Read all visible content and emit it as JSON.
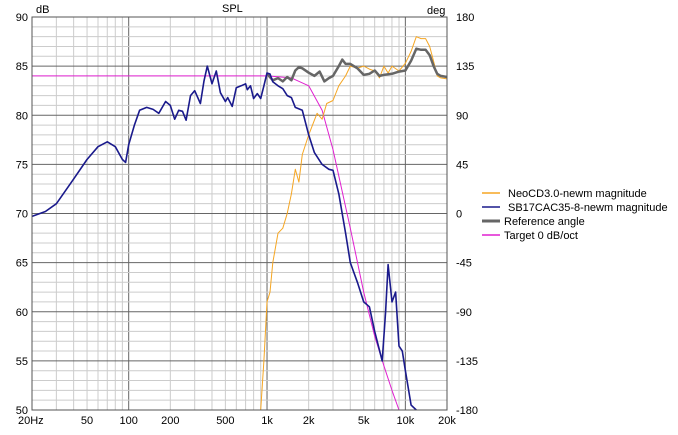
{
  "chart_data": {
    "type": "line",
    "title": "SPL",
    "ylabel": "dB",
    "y2label": "deg",
    "xscale": "log",
    "xlim": [
      20,
      20000
    ],
    "ylim": [
      50,
      90
    ],
    "y2lim": [
      -180,
      180
    ],
    "grid": true,
    "legend_position": "right",
    "x_ticks": [
      {
        "v": 20,
        "label": "20Hz"
      },
      {
        "v": 50,
        "label": "50"
      },
      {
        "v": 100,
        "label": "100"
      },
      {
        "v": 200,
        "label": "200"
      },
      {
        "v": 500,
        "label": "500"
      },
      {
        "v": 1000,
        "label": "1k"
      },
      {
        "v": 2000,
        "label": "2k"
      },
      {
        "v": 5000,
        "label": "5k"
      },
      {
        "v": 10000,
        "label": "10k"
      },
      {
        "v": 20000,
        "label": "20k"
      }
    ],
    "y_ticks": [
      "90",
      "85",
      "80",
      "75",
      "70",
      "65",
      "60",
      "55",
      "50"
    ],
    "y2_ticks": [
      "180",
      "135",
      "90",
      "45",
      "0",
      "-45",
      "-90",
      "-135",
      "-180"
    ],
    "series": [
      {
        "name": "NeoCD3.0-newm magnitude",
        "color": "#f5a623",
        "axis": "left",
        "width": 1,
        "points": [
          [
            900,
            50
          ],
          [
            950,
            55
          ],
          [
            1000,
            61
          ],
          [
            1050,
            62
          ],
          [
            1100,
            65
          ],
          [
            1200,
            68
          ],
          [
            1300,
            68.5
          ],
          [
            1400,
            70
          ],
          [
            1500,
            72
          ],
          [
            1600,
            74.5
          ],
          [
            1700,
            73.2
          ],
          [
            1800,
            76
          ],
          [
            2000,
            78
          ],
          [
            2200,
            79.5
          ],
          [
            2300,
            80.2
          ],
          [
            2500,
            79.6
          ],
          [
            2700,
            81.2
          ],
          [
            3000,
            81.5
          ],
          [
            3300,
            83
          ],
          [
            3700,
            84
          ],
          [
            4000,
            85
          ],
          [
            4500,
            84.8
          ],
          [
            5000,
            85
          ],
          [
            5500,
            84.7
          ],
          [
            6000,
            84.5
          ],
          [
            6500,
            83.8
          ],
          [
            7000,
            85
          ],
          [
            7500,
            84.3
          ],
          [
            8000,
            85
          ],
          [
            9000,
            84.5
          ],
          [
            10000,
            85.3
          ],
          [
            11000,
            86.5
          ],
          [
            12000,
            88
          ],
          [
            13000,
            87.8
          ],
          [
            14000,
            87.8
          ],
          [
            15000,
            87
          ],
          [
            16000,
            85.5
          ],
          [
            17000,
            84
          ],
          [
            18000,
            83.8
          ],
          [
            20000,
            83.7
          ]
        ]
      },
      {
        "name": "SB17CAC35-8-newm magnitude",
        "color": "#1a1a8c",
        "axis": "left",
        "width": 1.6,
        "points": [
          [
            20,
            69.7
          ],
          [
            25,
            70.2
          ],
          [
            30,
            71
          ],
          [
            40,
            73.5
          ],
          [
            50,
            75.5
          ],
          [
            60,
            76.8
          ],
          [
            70,
            77.3
          ],
          [
            80,
            76.8
          ],
          [
            90,
            75.5
          ],
          [
            95,
            75.2
          ],
          [
            100,
            77
          ],
          [
            110,
            79
          ],
          [
            120,
            80.5
          ],
          [
            135,
            80.8
          ],
          [
            150,
            80.6
          ],
          [
            165,
            80.2
          ],
          [
            185,
            81.4
          ],
          [
            200,
            81
          ],
          [
            215,
            79.6
          ],
          [
            230,
            80.5
          ],
          [
            245,
            80.4
          ],
          [
            260,
            79.5
          ],
          [
            280,
            82
          ],
          [
            300,
            82.5
          ],
          [
            330,
            81.2
          ],
          [
            350,
            83.5
          ],
          [
            370,
            85
          ],
          [
            400,
            83.2
          ],
          [
            430,
            84.5
          ],
          [
            460,
            82.3
          ],
          [
            500,
            81.4
          ],
          [
            520,
            81.8
          ],
          [
            560,
            80.9
          ],
          [
            600,
            82.8
          ],
          [
            650,
            83
          ],
          [
            700,
            83.2
          ],
          [
            720,
            82.6
          ],
          [
            760,
            83
          ],
          [
            800,
            81.7
          ],
          [
            850,
            82.2
          ],
          [
            900,
            81.7
          ],
          [
            950,
            83
          ],
          [
            1000,
            84.3
          ],
          [
            1050,
            84.2
          ],
          [
            1100,
            83.4
          ],
          [
            1200,
            83
          ],
          [
            1300,
            82.7
          ],
          [
            1400,
            82
          ],
          [
            1500,
            81.8
          ],
          [
            1600,
            80.8
          ],
          [
            1800,
            80.5
          ],
          [
            2000,
            78
          ],
          [
            2200,
            76.2
          ],
          [
            2500,
            75
          ],
          [
            2800,
            74.5
          ],
          [
            3000,
            74.4
          ],
          [
            3300,
            72
          ],
          [
            3700,
            68
          ],
          [
            4000,
            65
          ],
          [
            4500,
            63
          ],
          [
            5000,
            61
          ],
          [
            5500,
            60.5
          ],
          [
            6000,
            58
          ],
          [
            6800,
            55
          ],
          [
            7200,
            60
          ],
          [
            7500,
            64.8
          ],
          [
            8000,
            61
          ],
          [
            8500,
            62
          ],
          [
            9000,
            56.5
          ],
          [
            9500,
            56
          ],
          [
            10000,
            54
          ],
          [
            11000,
            50.5
          ],
          [
            12000,
            50
          ]
        ]
      },
      {
        "name": "Reference angle",
        "color": "#666666",
        "axis": "right",
        "width": 2.5,
        "points": [
          [
            1000,
            128
          ],
          [
            1100,
            122
          ],
          [
            1200,
            124
          ],
          [
            1300,
            121
          ],
          [
            1400,
            125
          ],
          [
            1500,
            122
          ],
          [
            1600,
            131
          ],
          [
            1700,
            134
          ],
          [
            1800,
            133
          ],
          [
            2000,
            129
          ],
          [
            2200,
            126
          ],
          [
            2400,
            130
          ],
          [
            2600,
            121
          ],
          [
            2800,
            124
          ],
          [
            3000,
            126
          ],
          [
            3300,
            135
          ],
          [
            3500,
            141
          ],
          [
            3700,
            137
          ],
          [
            4000,
            137
          ],
          [
            4500,
            133
          ],
          [
            5000,
            127
          ],
          [
            5500,
            128
          ],
          [
            6000,
            131
          ],
          [
            6500,
            126
          ],
          [
            7000,
            127
          ],
          [
            8000,
            128
          ],
          [
            9000,
            130
          ],
          [
            10000,
            131
          ],
          [
            11000,
            140
          ],
          [
            12000,
            151
          ],
          [
            13000,
            150
          ],
          [
            14000,
            150
          ],
          [
            15000,
            145
          ],
          [
            16000,
            135
          ],
          [
            17000,
            128
          ],
          [
            18000,
            126
          ],
          [
            20000,
            125
          ]
        ]
      },
      {
        "name": "Target 0 dB/oct",
        "color": "#e020d0",
        "axis": "left",
        "width": 1,
        "points": [
          [
            20,
            84
          ],
          [
            1000,
            84
          ],
          [
            1500,
            83.8
          ],
          [
            2000,
            83
          ],
          [
            2500,
            80.5
          ],
          [
            3000,
            76.5
          ],
          [
            4000,
            68.5
          ],
          [
            5000,
            62
          ],
          [
            6000,
            57.5
          ],
          [
            7000,
            54.5
          ],
          [
            8000,
            52
          ],
          [
            9000,
            50
          ]
        ]
      }
    ]
  }
}
